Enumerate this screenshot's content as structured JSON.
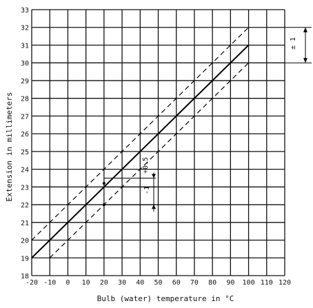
{
  "chart_data": {
    "type": "line",
    "title": "",
    "xlabel": "Bulb (water) temperature in °C",
    "ylabel": "Extension in millimeters",
    "xlim": [
      -20,
      120
    ],
    "ylim": [
      18,
      33
    ],
    "x_ticks": [
      "-20",
      "-10",
      "0",
      "10",
      "20",
      "30",
      "40",
      "50",
      "60",
      "70",
      "80",
      "90",
      "100",
      "110",
      "120"
    ],
    "y_ticks": [
      "18",
      "19",
      "20",
      "21",
      "22",
      "23",
      "24",
      "25",
      "26",
      "27",
      "28",
      "29",
      "30",
      "31",
      "32",
      "33"
    ],
    "grid": true,
    "series": [
      {
        "style": "solid",
        "x": [
          -20,
          100
        ],
        "y": [
          19,
          31
        ]
      },
      {
        "style": "dashed",
        "x": [
          -20,
          100
        ],
        "y": [
          20,
          32
        ]
      },
      {
        "style": "dashed",
        "x": [
          -10,
          100
        ],
        "y": [
          19,
          30
        ]
      }
    ],
    "annotations": {
      "tolerance_side": "± 1",
      "tolerance_plus": "+0.5",
      "tolerance_minus": "-1"
    }
  }
}
